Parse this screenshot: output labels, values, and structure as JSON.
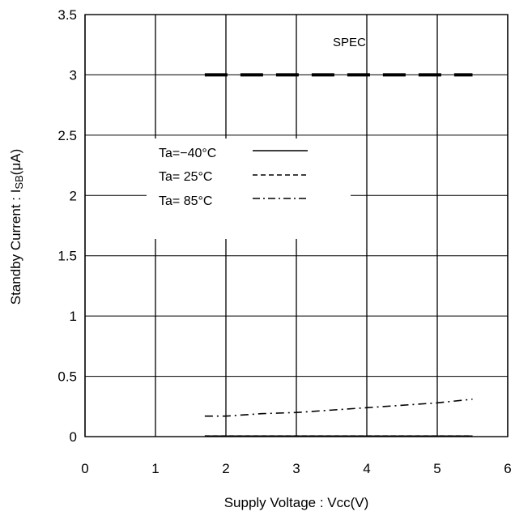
{
  "chart_data": {
    "type": "line",
    "xlabel": "Supply Voltage : Vcc(V)",
    "ylabel_main": "Standby Current : I",
    "ylabel_sub": "SB",
    "ylabel_unit": "(μA)",
    "xlim": [
      0,
      6
    ],
    "ylim": [
      0,
      3.5
    ],
    "x_ticks": [
      "0",
      "1",
      "2",
      "3",
      "4",
      "5",
      "6"
    ],
    "y_ticks": [
      "0",
      "0.5",
      "1",
      "1.5",
      "2",
      "2.5",
      "3",
      "3.5"
    ],
    "grid": "vertical and horizontal",
    "legend_position": "upper-left, inside plot",
    "series": [
      {
        "name": "Ta=−40°C",
        "style": "solid",
        "x": [
          1.7,
          5.5
        ],
        "y": [
          0.005,
          0.005
        ]
      },
      {
        "name": "Ta= 25°C",
        "style": "dashed",
        "x": [
          1.7,
          5.5
        ],
        "y": [
          0.005,
          0.005
        ]
      },
      {
        "name": "Ta= 85°C",
        "style": "dashdot",
        "x": [
          1.7,
          2.0,
          2.5,
          3.0,
          3.5,
          4.0,
          4.5,
          5.0,
          5.5
        ],
        "y": [
          0.17,
          0.17,
          0.19,
          0.2,
          0.22,
          0.24,
          0.26,
          0.28,
          0.31
        ]
      }
    ],
    "spec_line": {
      "label": "SPEC",
      "x": [
        1.7,
        5.5
      ],
      "y": [
        3,
        3
      ]
    }
  }
}
